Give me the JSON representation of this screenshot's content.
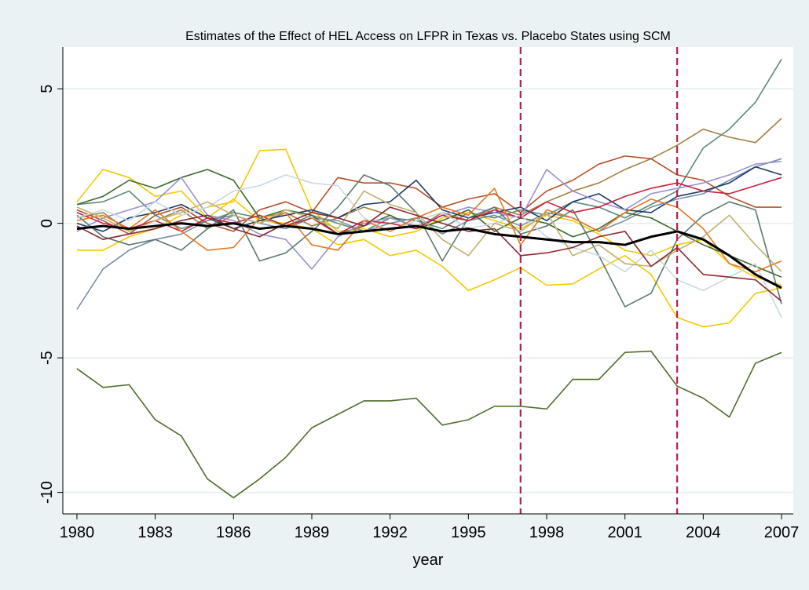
{
  "chart_data": {
    "type": "line",
    "title": "Estimates of the Effect of HEL Access on LFPR in Texas vs. Placebo States using SCM",
    "x_label": "year",
    "x": [
      1980,
      1981,
      1982,
      1983,
      1984,
      1985,
      1986,
      1987,
      1988,
      1989,
      1990,
      1991,
      1992,
      1993,
      1994,
      1995,
      1996,
      1997,
      1998,
      1999,
      2000,
      2001,
      2002,
      2003,
      2004,
      2005,
      2006,
      2007
    ],
    "xlim": [
      1979.46,
      2007.45
    ],
    "xticks": [
      1980,
      1983,
      1986,
      1989,
      1992,
      1995,
      1998,
      2001,
      2004,
      2007
    ],
    "ylim": [
      -10.8,
      6.55
    ],
    "yticks": [
      -10,
      -5,
      0,
      5
    ],
    "grid": true,
    "vlines": [
      1997,
      2003
    ],
    "vline_color": "#b0224a",
    "series": [
      {
        "color": "#5a8a7a",
        "values": [
          0.7,
          0.8,
          1.2,
          0.3,
          -0.2,
          0.1,
          0.4,
          0.2,
          -0.1,
          0.3,
          0.0,
          -0.3,
          0.2,
          0.1,
          -0.2,
          0.4,
          0.2,
          0.5,
          0.3,
          0.8,
          0.6,
          0.2,
          0.7,
          1.2,
          2.8,
          3.5,
          4.5,
          6.1
        ]
      },
      {
        "color": "#a08040",
        "values": [
          0.2,
          0.4,
          -0.3,
          0.1,
          0.5,
          -0.2,
          0.3,
          0.0,
          0.4,
          -0.1,
          0.2,
          0.6,
          0.3,
          -0.2,
          0.4,
          0.1,
          0.6,
          0.3,
          0.8,
          1.2,
          1.5,
          2.0,
          2.4,
          2.9,
          3.5,
          3.2,
          3.0,
          3.9
        ]
      },
      {
        "color": "#f5c800",
        "values": [
          -1.0,
          -1.0,
          -0.5,
          -0.2,
          0.3,
          0.6,
          0.8,
          2.7,
          2.75,
          0.5,
          -0.3,
          -0.2,
          -0.5,
          -0.3,
          0.2,
          0.4,
          0.1,
          -0.2,
          0.3,
          0.1,
          -0.4,
          -1.0,
          -1.2,
          -0.8,
          -0.6,
          -1.5,
          -2.0,
          -2.3
        ]
      },
      {
        "color": "#f5c800",
        "values": [
          0.8,
          2.0,
          1.7,
          1.0,
          1.2,
          0.2,
          0.9,
          0.1,
          0.0,
          -0.2,
          -0.8,
          -0.6,
          -1.2,
          -1.0,
          -1.6,
          -2.5,
          -2.1,
          -1.65,
          -2.3,
          -2.25,
          -1.7,
          -1.2,
          -1.9,
          -3.5,
          -3.85,
          -3.7,
          -2.6,
          -2.4
        ]
      },
      {
        "color": "#7a8ea8",
        "values": [
          -3.2,
          -1.7,
          -1.0,
          -0.6,
          -0.4,
          0.1,
          0.3,
          0.0,
          -0.2,
          0.2,
          0.1,
          -0.3,
          0.0,
          0.2,
          -0.4,
          0.1,
          0.3,
          -0.1,
          0.4,
          0.2,
          -0.3,
          0.1,
          0.6,
          0.9,
          1.1,
          1.6,
          2.1,
          2.4
        ]
      },
      {
        "color": "#3a6a2a",
        "values": [
          0.7,
          1.0,
          1.6,
          1.3,
          1.7,
          2.0,
          1.6,
          0.2,
          0.5,
          0.3,
          -0.4,
          -0.1,
          0.3,
          -0.2,
          0.1,
          0.5,
          -0.3,
          0.2,
          0.0,
          -0.5,
          -0.2,
          0.4,
          0.2,
          -0.3,
          -0.8,
          -1.2,
          -1.6,
          -2.0
        ]
      },
      {
        "color": "#b5502a",
        "values": [
          0.5,
          0.1,
          -0.4,
          0.3,
          0.6,
          0.0,
          -0.3,
          0.5,
          0.8,
          0.4,
          1.7,
          1.5,
          1.5,
          1.3,
          0.6,
          0.9,
          1.1,
          0.4,
          1.2,
          1.6,
          2.2,
          2.5,
          2.4,
          1.8,
          1.6,
          1.0,
          0.6,
          0.6
        ]
      },
      {
        "color": "#1a3a6a",
        "values": [
          0.0,
          -0.3,
          0.2,
          0.4,
          0.7,
          0.2,
          -0.2,
          0.1,
          0.3,
          0.5,
          0.2,
          0.7,
          0.8,
          1.6,
          0.5,
          0.2,
          0.4,
          0.6,
          0.1,
          0.8,
          1.1,
          0.5,
          0.4,
          1.0,
          1.2,
          1.5,
          2.1,
          1.8
        ]
      },
      {
        "color": "#9a90d0",
        "values": [
          -0.3,
          0.2,
          0.5,
          0.8,
          1.7,
          0.3,
          0.1,
          -0.4,
          -0.6,
          -1.7,
          -0.5,
          0.0,
          0.2,
          -0.1,
          0.3,
          0.6,
          0.4,
          0.2,
          2.0,
          1.2,
          0.8,
          0.5,
          1.1,
          1.3,
          1.5,
          1.8,
          2.2,
          2.3
        ]
      },
      {
        "color": "#5a7a70",
        "values": [
          0.3,
          -0.5,
          -0.8,
          -0.6,
          -1.0,
          -0.2,
          0.5,
          -1.4,
          -1.1,
          -0.3,
          0.6,
          1.8,
          1.4,
          0.4,
          -1.4,
          0.2,
          0.6,
          -0.4,
          -0.1,
          0.5,
          -1.2,
          -3.1,
          -2.6,
          -0.6,
          0.3,
          0.8,
          0.5,
          -3.0
        ]
      },
      {
        "color": "#c8203a",
        "values": [
          0.4,
          0.0,
          -0.2,
          0.1,
          -0.3,
          0.2,
          0.0,
          0.3,
          -0.1,
          0.2,
          -0.4,
          0.1,
          0.0,
          -0.2,
          0.3,
          0.1,
          0.5,
          0.2,
          0.8,
          0.4,
          0.6,
          1.0,
          1.3,
          1.5,
          1.2,
          1.1,
          1.4,
          1.7
        ]
      },
      {
        "color": "#c8d8e0",
        "values": [
          0.2,
          0.5,
          0.1,
          0.8,
          0.3,
          0.6,
          1.2,
          1.4,
          1.8,
          1.5,
          1.4,
          0.2,
          -0.3,
          0.1,
          0.4,
          -0.2,
          0.0,
          0.3,
          -0.5,
          -0.9,
          -1.2,
          -1.8,
          -1.0,
          -2.1,
          -2.5,
          -2.0,
          -1.5,
          -3.5
        ]
      },
      {
        "color": "#e87820",
        "values": [
          0.1,
          0.3,
          -0.2,
          0.5,
          -0.3,
          -1.0,
          -0.9,
          0.2,
          0.4,
          -0.8,
          -1.0,
          0.1,
          -0.3,
          0.2,
          0.6,
          0.3,
          1.3,
          -0.8,
          0.5,
          0.2,
          -0.3,
          0.4,
          0.9,
          0.6,
          -0.2,
          -1.5,
          -1.8,
          -1.4
        ]
      },
      {
        "color": "#c0b070",
        "values": [
          0.6,
          0.2,
          -0.3,
          0.1,
          0.4,
          0.8,
          0.3,
          0.0,
          0.5,
          0.2,
          -0.2,
          1.2,
          0.7,
          0.4,
          -0.6,
          -1.2,
          0.0,
          -0.3,
          0.4,
          -1.2,
          -0.8,
          -1.5,
          -1.6,
          -1.0,
          -0.5,
          0.3,
          -0.8,
          -1.8
        ]
      },
      {
        "color": "#8a2a30",
        "values": [
          -0.1,
          -0.6,
          -0.4,
          -0.2,
          0.1,
          0.3,
          -0.2,
          -0.5,
          0.0,
          0.4,
          0.2,
          -0.1,
          0.6,
          0.3,
          0.0,
          -0.3,
          -0.2,
          -1.2,
          -1.1,
          -0.9,
          -0.5,
          -0.3,
          -1.6,
          -0.9,
          -1.9,
          -2.0,
          -2.1,
          -2.9
        ]
      },
      {
        "color": "#4e6e2a",
        "values": [
          -5.4,
          -6.1,
          -6.0,
          -7.3,
          -7.9,
          -9.5,
          -10.2,
          -9.5,
          -8.7,
          -7.6,
          -7.1,
          -6.6,
          -6.6,
          -6.5,
          -7.5,
          -7.3,
          -6.8,
          -6.8,
          -6.9,
          -5.8,
          -5.8,
          -4.8,
          -4.75,
          -6.05,
          -6.5,
          -7.2,
          -5.2,
          -4.8
        ]
      },
      {
        "color": "#000000",
        "width": 3,
        "values": [
          -0.2,
          -0.1,
          -0.2,
          -0.1,
          0.0,
          -0.1,
          0.0,
          -0.2,
          -0.1,
          -0.2,
          -0.4,
          -0.3,
          -0.2,
          -0.1,
          -0.3,
          -0.2,
          -0.4,
          -0.5,
          -0.6,
          -0.7,
          -0.7,
          -0.8,
          -0.5,
          -0.3,
          -0.6,
          -1.2,
          -1.9,
          -2.4
        ]
      }
    ]
  }
}
